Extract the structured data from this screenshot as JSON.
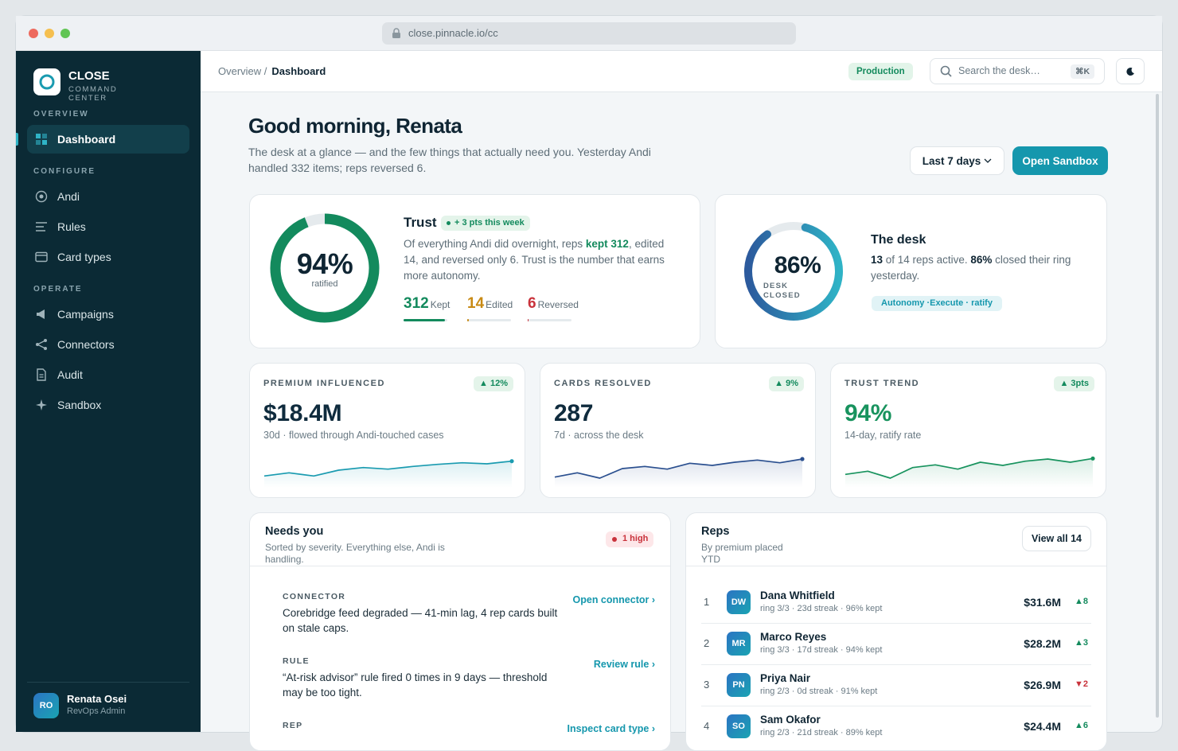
{
  "browser": {
    "url": "close.pinnacle.io/cc"
  },
  "sidebar": {
    "brand": "CLOSE",
    "brand_sub": "COMMAND CENTER",
    "sections": [
      {
        "label": "OVERVIEW",
        "items": [
          {
            "label": "Dashboard",
            "active": true
          }
        ]
      },
      {
        "label": "CONFIGURE",
        "items": [
          {
            "label": "Andi"
          },
          {
            "label": "Rules"
          },
          {
            "label": "Card types"
          }
        ]
      },
      {
        "label": "OPERATE",
        "items": [
          {
            "label": "Campaigns"
          },
          {
            "label": "Connectors"
          },
          {
            "label": "Audit"
          },
          {
            "label": "Sandbox"
          }
        ]
      }
    ],
    "user": {
      "initials": "RO",
      "name": "Renata Osei",
      "role": "RevOps Admin"
    }
  },
  "topbar": {
    "breadcrumb": [
      "Overview /",
      "Dashboard"
    ],
    "environment": "Production",
    "search_placeholder": "Search the desk…",
    "search_shortcut": "⌘K"
  },
  "header": {
    "title": "Good morning, Renata",
    "subtitle": "The desk at a glance — and the few things that actually need you. Yesterday Andi handled 332 items; reps reversed 6.",
    "range": "Last 7 days",
    "cta": "Open Sandbox"
  },
  "trust": {
    "value": 94,
    "value_label": "94%",
    "caption": "ratified",
    "color": "#138a5d",
    "title": "Trust",
    "badge": "+ 3 pts this week",
    "text": [
      "Of everything Andi did overnight, reps ",
      "kept 312",
      ", edited 14, and reversed only 6. Trust is the number that earns more autonomy."
    ],
    "stats": [
      {
        "value": 312,
        "label": "Kept",
        "color": "#138a5d"
      },
      {
        "value": 14,
        "label": "Edited",
        "color": "#c88a14"
      },
      {
        "value": 6,
        "label": "Reversed",
        "color": "#c9323b"
      }
    ]
  },
  "desk": {
    "value": 86,
    "value_label": "86%",
    "caption": "DESK CLOSED",
    "title": "The desk",
    "text": [
      "13",
      " of 14 reps active. ",
      "86%",
      " closed their ring yesterday."
    ],
    "badge": "Autonomy ·Execute · ratify"
  },
  "kpi": {
    "spark_ylim": [
      0,
      60
    ],
    "cards": [
      {
        "label": "PREMIUM INFLUENCED",
        "delta": "▲ 12%",
        "value": "$18.4M",
        "sub": "30d · flowed through Andi-touched cases",
        "color": "#1a9bb0",
        "value_color": "#0f2b3d",
        "spark": [
          22,
          28,
          22,
          33,
          38,
          35,
          40,
          44,
          47,
          45,
          50
        ]
      },
      {
        "label": "CARDS RESOLVED",
        "delta": "▲ 9%",
        "value": "287",
        "sub": "7d · across the desk",
        "color": "#2a4f8f",
        "value_color": "#0f2b3d",
        "spark": [
          20,
          28,
          18,
          36,
          40,
          35,
          46,
          42,
          48,
          52,
          47,
          54
        ]
      },
      {
        "label": "TRUST TREND",
        "delta": "▲ 3pts",
        "value": "94%",
        "sub": "14-day, ratify rate",
        "color": "#18935e",
        "value_color": "#18935e",
        "spark": [
          25,
          31,
          18,
          38,
          43,
          35,
          48,
          42,
          50,
          54,
          48,
          55
        ]
      }
    ]
  },
  "needs": {
    "title": "Needs you",
    "subtitle": "Sorted by severity. Everything else, Andi is handling.",
    "badge": "1 high",
    "items": [
      {
        "kind": "CONNECTOR",
        "text": "Corebridge feed degraded — 41-min lag, 4 rep cards built on stale caps.",
        "action": "Open connector ›"
      },
      {
        "kind": "RULE",
        "text": "“At-risk advisor” rule fired 0 times in 9 days — threshold may be too tight.",
        "action": "Review rule ›"
      },
      {
        "kind": "REP",
        "action": "Inspect card type ›"
      }
    ]
  },
  "reps": {
    "title": "Reps",
    "subtitle": "By premium placed YTD",
    "button": "View all 14",
    "rows": [
      {
        "rank": 1,
        "initials": "DW",
        "name": "Dana Whitfield",
        "meta": "ring 3/3 · 23d streak · 96% kept",
        "premium": "$31.6M",
        "delta": "▲8",
        "trend": "up"
      },
      {
        "rank": 2,
        "initials": "MR",
        "name": "Marco Reyes",
        "meta": "ring 3/3 · 17d streak · 94% kept",
        "premium": "$28.2M",
        "delta": "▲3",
        "trend": "up"
      },
      {
        "rank": 3,
        "initials": "PN",
        "name": "Priya Nair",
        "meta": "ring 2/3 · 0d streak · 91% kept",
        "premium": "$26.9M",
        "delta": "▼2",
        "trend": "down"
      },
      {
        "rank": 4,
        "initials": "SO",
        "name": "Sam Okafor",
        "meta": "ring 2/3 · 21d streak · 89% kept",
        "premium": "$24.4M",
        "delta": "▲6",
        "trend": "up"
      }
    ]
  }
}
